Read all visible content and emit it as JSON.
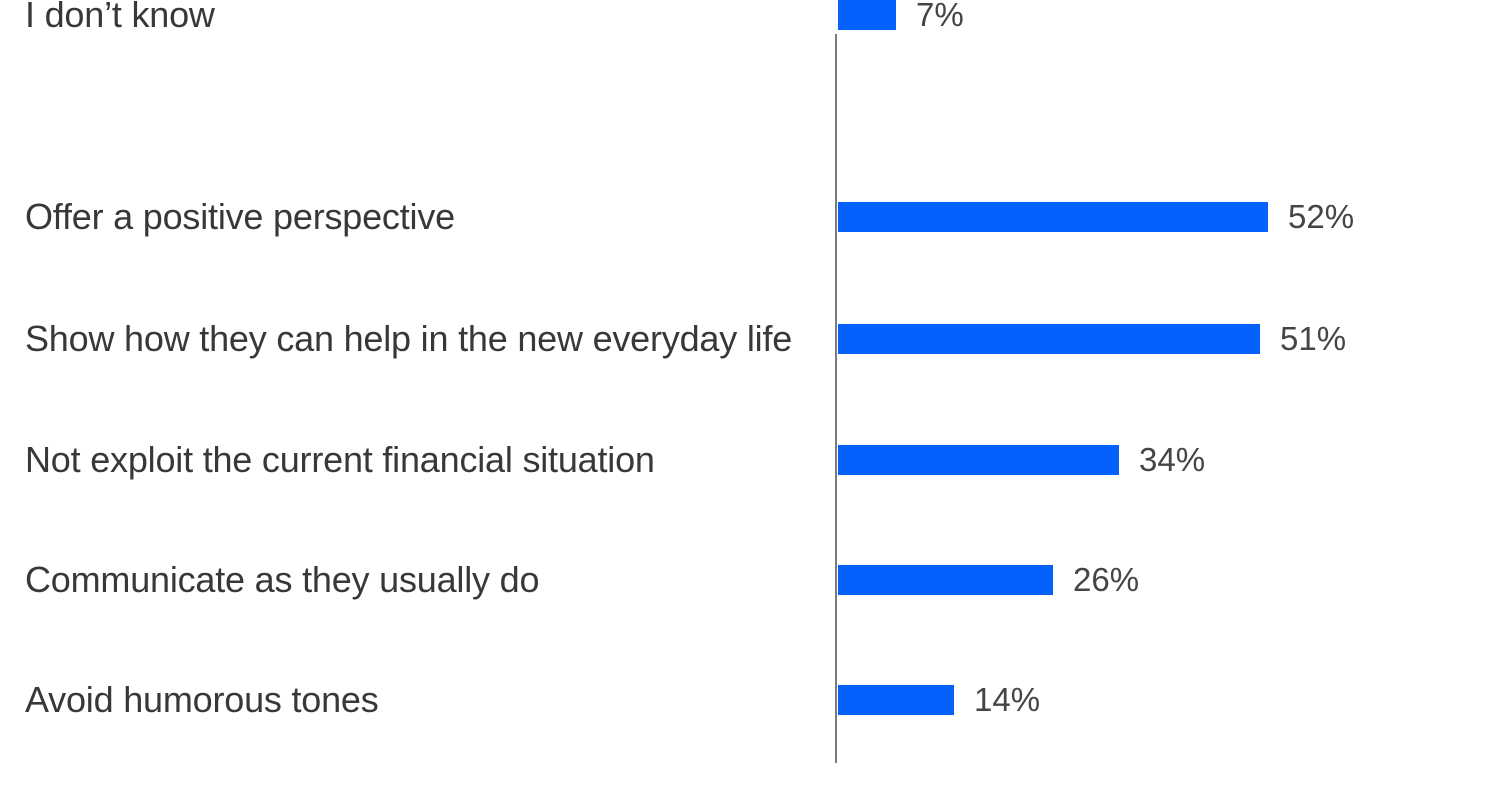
{
  "chart_data": {
    "type": "bar",
    "orientation": "horizontal",
    "title": "",
    "xlabel": "",
    "ylabel": "",
    "categories": [
      "Offer a positive perspective",
      "Show how they can help in the new everyday life",
      "Not exploit the current financial situation",
      "Communicate as they usually do",
      "Avoid humorous tones",
      "I don’t know"
    ],
    "values": [
      52,
      51,
      34,
      26,
      14,
      7
    ],
    "value_labels": [
      "52%",
      "51%",
      "34%",
      "26%",
      "14%",
      "7%"
    ],
    "xlim": [
      0,
      52
    ],
    "grid": false,
    "legend": false,
    "value_label_position": "end-of-bar",
    "bar_color": "#0561fc",
    "axis_color": "#7b7b7b",
    "category_text_color": "#383838",
    "value_text_color": "#454545",
    "background_color": "#ffffff"
  }
}
